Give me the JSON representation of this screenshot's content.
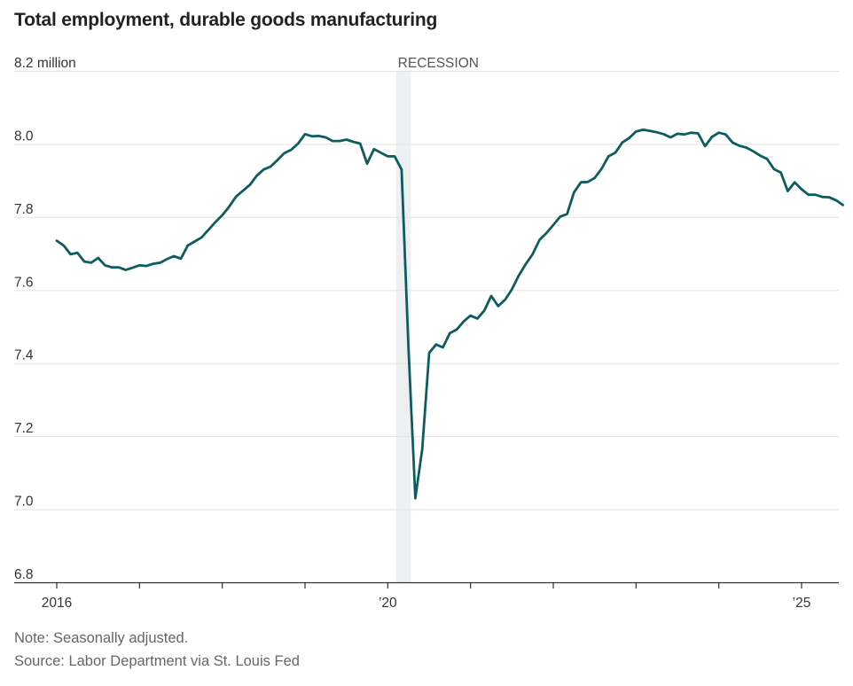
{
  "title": "Total employment, durable goods manufacturing",
  "note": "Note: Seasonally adjusted.",
  "source": "Source: Labor Department via St. Louis Fed",
  "colors": {
    "line": "#0f5c5f",
    "recession": "#eeeff1",
    "grid": "#e3e3e3",
    "axis": "#333333"
  },
  "chart_data": {
    "type": "line",
    "title": "Total employment, durable goods manufacturing",
    "xlabel": "",
    "ylabel": "",
    "ylim": [
      6.8,
      8.2
    ],
    "xlim": [
      2016.0,
      2025.45
    ],
    "grid": true,
    "legend": "none",
    "y_ticks": [
      {
        "value": 8.2,
        "label": "8.2 million"
      },
      {
        "value": 8.0,
        "label": "8.0"
      },
      {
        "value": 7.8,
        "label": "7.8"
      },
      {
        "value": 7.6,
        "label": "7.6"
      },
      {
        "value": 7.4,
        "label": "7.4"
      },
      {
        "value": 7.2,
        "label": "7.2"
      },
      {
        "value": 7.0,
        "label": "7.0"
      },
      {
        "value": 6.8,
        "label": "6.8"
      }
    ],
    "x_ticks": [
      {
        "value": 2016,
        "label": "2016"
      },
      {
        "value": 2017,
        "label": ""
      },
      {
        "value": 2018,
        "label": ""
      },
      {
        "value": 2019,
        "label": ""
      },
      {
        "value": 2020,
        "label": "’20"
      },
      {
        "value": 2021,
        "label": ""
      },
      {
        "value": 2022,
        "label": ""
      },
      {
        "value": 2023,
        "label": ""
      },
      {
        "value": 2024,
        "label": ""
      },
      {
        "value": 2025,
        "label": "’25"
      }
    ],
    "recession": {
      "start": 2020.1,
      "end": 2020.28,
      "label": "RECESSION"
    },
    "series": [
      {
        "values": [
          7.735,
          7.722,
          7.698,
          7.702,
          7.678,
          7.675,
          7.688,
          7.668,
          7.662,
          7.662,
          7.655,
          7.661,
          7.668,
          7.666,
          7.672,
          7.675,
          7.685,
          7.693,
          7.686,
          7.722,
          7.733,
          7.744,
          7.765,
          7.786,
          7.805,
          7.828,
          7.856,
          7.872,
          7.888,
          7.913,
          7.93,
          7.938,
          7.956,
          7.975,
          7.984,
          8.001,
          8.027,
          8.021,
          8.022,
          8.018,
          8.008,
          8.008,
          8.012,
          8.006,
          8.001,
          7.946,
          7.986,
          7.976,
          7.966,
          7.966,
          7.93,
          7.44,
          7.03,
          7.165,
          7.428,
          7.451,
          7.443,
          7.482,
          7.492,
          7.514,
          7.53,
          7.522,
          7.544,
          7.584,
          7.556,
          7.573,
          7.602,
          7.64,
          7.671,
          7.698,
          7.737,
          7.756,
          7.778,
          7.801,
          7.808,
          7.867,
          7.895,
          7.896,
          7.907,
          7.932,
          7.966,
          7.976,
          8.004,
          8.016,
          8.034,
          8.039,
          8.036,
          8.032,
          8.027,
          8.018,
          8.028,
          8.026,
          8.031,
          8.029,
          7.994,
          8.019,
          8.031,
          8.026,
          8.004,
          7.995,
          7.99,
          7.98,
          7.968,
          7.959,
          7.931,
          7.922,
          7.871,
          7.895,
          7.876,
          7.861,
          7.861,
          7.855,
          7.854,
          7.846,
          7.833
        ],
        "x_start": 2016.0,
        "x_step": 0.08333
      }
    ]
  }
}
